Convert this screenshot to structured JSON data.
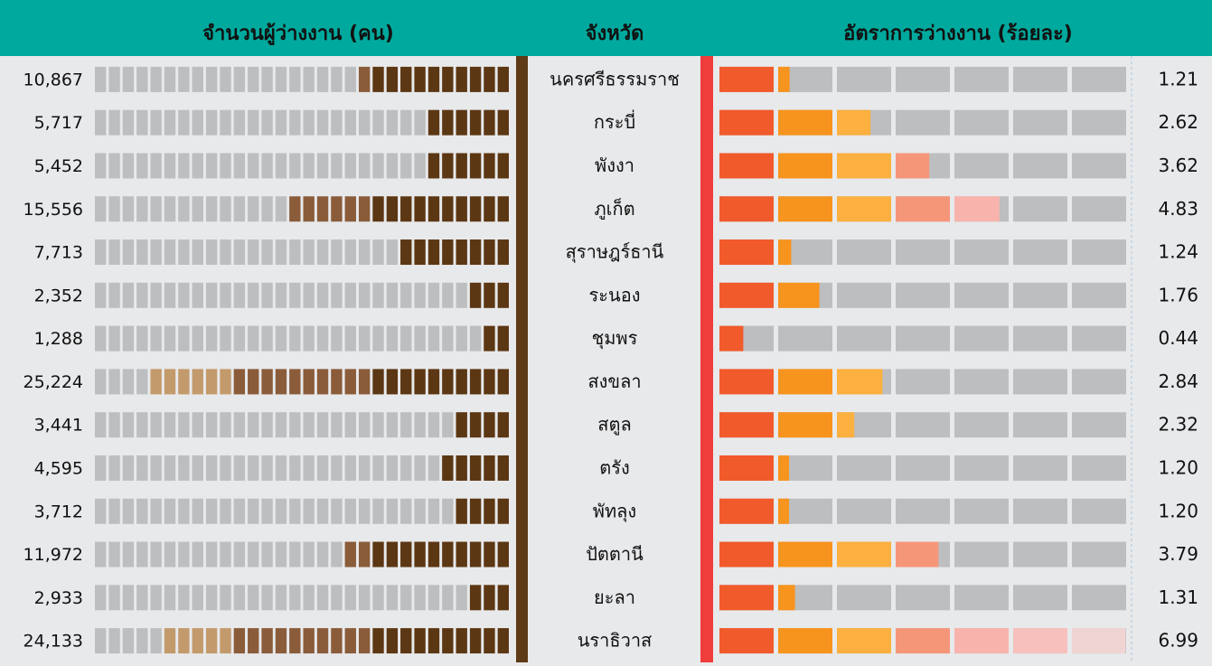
{
  "chart_data": {
    "type": "bar",
    "category_label": "จังหวัด",
    "categories": [
      "นครศรีธรรมราช",
      "กระบี่",
      "พังงา",
      "ภูเก็ต",
      "สุราษฎร์ธานี",
      "ระนอง",
      "ชุมพร",
      "สงขลา",
      "สตูล",
      "ตรัง",
      "พัทลุง",
      "ปัตตานี",
      "ยะลา",
      "นราธิวาส"
    ],
    "series": [
      {
        "name": "จำนวนผู้ว่างงาน (คน)",
        "values": [
          10867,
          5717,
          5452,
          15556,
          7713,
          2352,
          1288,
          25224,
          3441,
          4595,
          3712,
          11972,
          2933,
          24133
        ],
        "value_labels": [
          "10,867",
          "5,717",
          "5,452",
          "15,556",
          "7,713",
          "2,352",
          "1,288",
          "25,224",
          "3,441",
          "4,595",
          "3,712",
          "11,972",
          "2,933",
          "24,133"
        ],
        "xlim": [
          0,
          30000
        ],
        "colors": [
          "#5c3713",
          "#8a5c3a",
          "#c39a6b"
        ]
      },
      {
        "name": "อัตราการว่างงาน (ร้อยละ)",
        "values": [
          1.21,
          2.62,
          3.62,
          4.83,
          1.24,
          1.76,
          0.44,
          2.84,
          2.32,
          1.2,
          1.2,
          3.79,
          1.31,
          6.99
        ],
        "value_labels": [
          "1.21",
          "2.62",
          "3.62",
          "4.83",
          "1.24",
          "1.76",
          "0.44",
          "2.84",
          "2.32",
          "1.20",
          "1.20",
          "3.79",
          "1.31",
          "6.99"
        ],
        "xlim": [
          0,
          7
        ],
        "colors": [
          "#f15a2b",
          "#f7941e",
          "#fbb040",
          "#f69679",
          "#f8b4ac",
          "#f7c0bd",
          "#f0d4d3"
        ]
      }
    ]
  }
}
